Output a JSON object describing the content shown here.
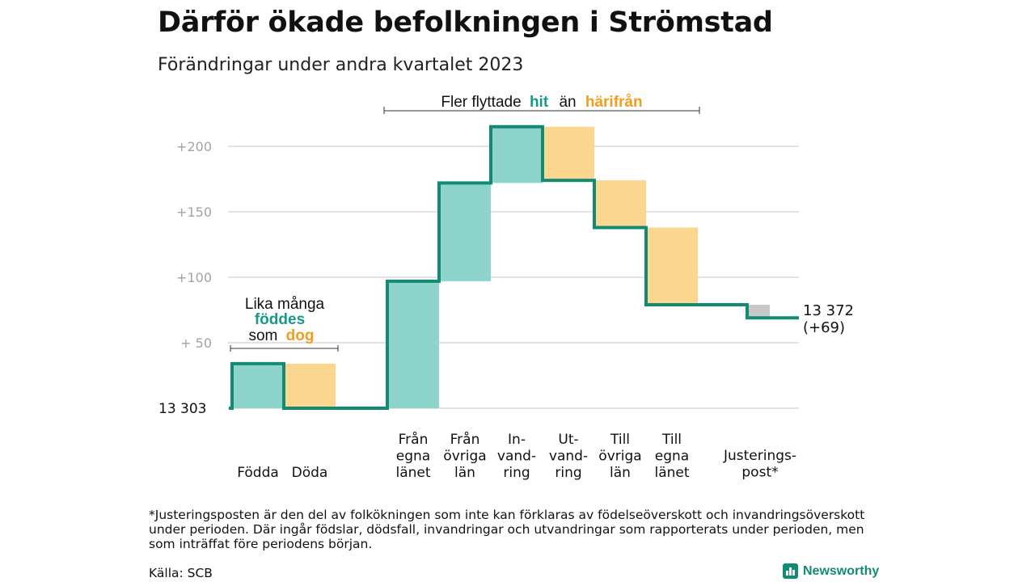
{
  "title": "Därför ökade befolkningen i Strömstad",
  "subtitle": "Förändringar under andra kvartalet 2023",
  "colors": {
    "line": "#138a74",
    "increase": "#8dd5cb",
    "decrease": "#fad68f",
    "adjustment": "#c8c8c8",
    "accent_teal": "#17988a",
    "accent_orange": "#f39c1f",
    "grid": "#d9d9d9",
    "tick": "#a3a3a3"
  },
  "annotations": {
    "migration": {
      "prefix": "Fler flyttade",
      "hit": "hit",
      "middle": "än",
      "harifran": "härifrån"
    },
    "births": {
      "line1": "Lika många",
      "fodd": "föddes",
      "som": "som",
      "dog": "dog"
    }
  },
  "chart_data": {
    "type": "waterfall",
    "base_label": "13  303",
    "base_value": 13303,
    "yticks": [
      {
        "value": 50,
        "label": "+  50"
      },
      {
        "value": 100,
        "label": "+100"
      },
      {
        "value": 150,
        "label": "+150"
      },
      {
        "value": 200,
        "label": "+200"
      }
    ],
    "ylim": [
      0,
      215
    ],
    "steps": [
      {
        "label": [
          "",
          "",
          "Födda"
        ],
        "from": 0,
        "to": 34,
        "kind": "increase"
      },
      {
        "label": [
          "",
          "",
          "Döda"
        ],
        "from": 34,
        "to": 0,
        "kind": "decrease"
      },
      {
        "label": [
          "",
          "",
          ""
        ],
        "from": 0,
        "to": 0,
        "kind": "gap"
      },
      {
        "label": [
          "Från",
          "egna",
          "länet"
        ],
        "from": 0,
        "to": 97,
        "kind": "increase"
      },
      {
        "label": [
          "Från",
          "övriga",
          "län"
        ],
        "from": 97,
        "to": 172,
        "kind": "increase"
      },
      {
        "label": [
          "In-",
          "vand-",
          "ring"
        ],
        "from": 172,
        "to": 215,
        "kind": "increase"
      },
      {
        "label": [
          "Ut-",
          "vand-",
          "ring"
        ],
        "from": 215,
        "to": 174,
        "kind": "decrease"
      },
      {
        "label": [
          "Till",
          "övriga",
          "län"
        ],
        "from": 174,
        "to": 138,
        "kind": "decrease"
      },
      {
        "label": [
          "Till",
          "egna",
          "länet"
        ],
        "from": 138,
        "to": 79,
        "kind": "decrease"
      }
    ],
    "adjustment": {
      "label": [
        "Justerings-",
        "post*"
      ],
      "from": 79,
      "to": 69
    },
    "end_value": 13372,
    "end_label": "13 372",
    "end_change": "(+69)"
  },
  "footnote": "*Justeringsposten är den del av folkökningen som inte kan förklaras av födelseöverskott och invandringsöverskott under perioden. Där ingår födslar, dödsfall, invandringar och utvandringar som rapporterats under perioden, men som inträffat före periodens början.",
  "source": "Källa: SCB",
  "brand": "Newsworthy"
}
